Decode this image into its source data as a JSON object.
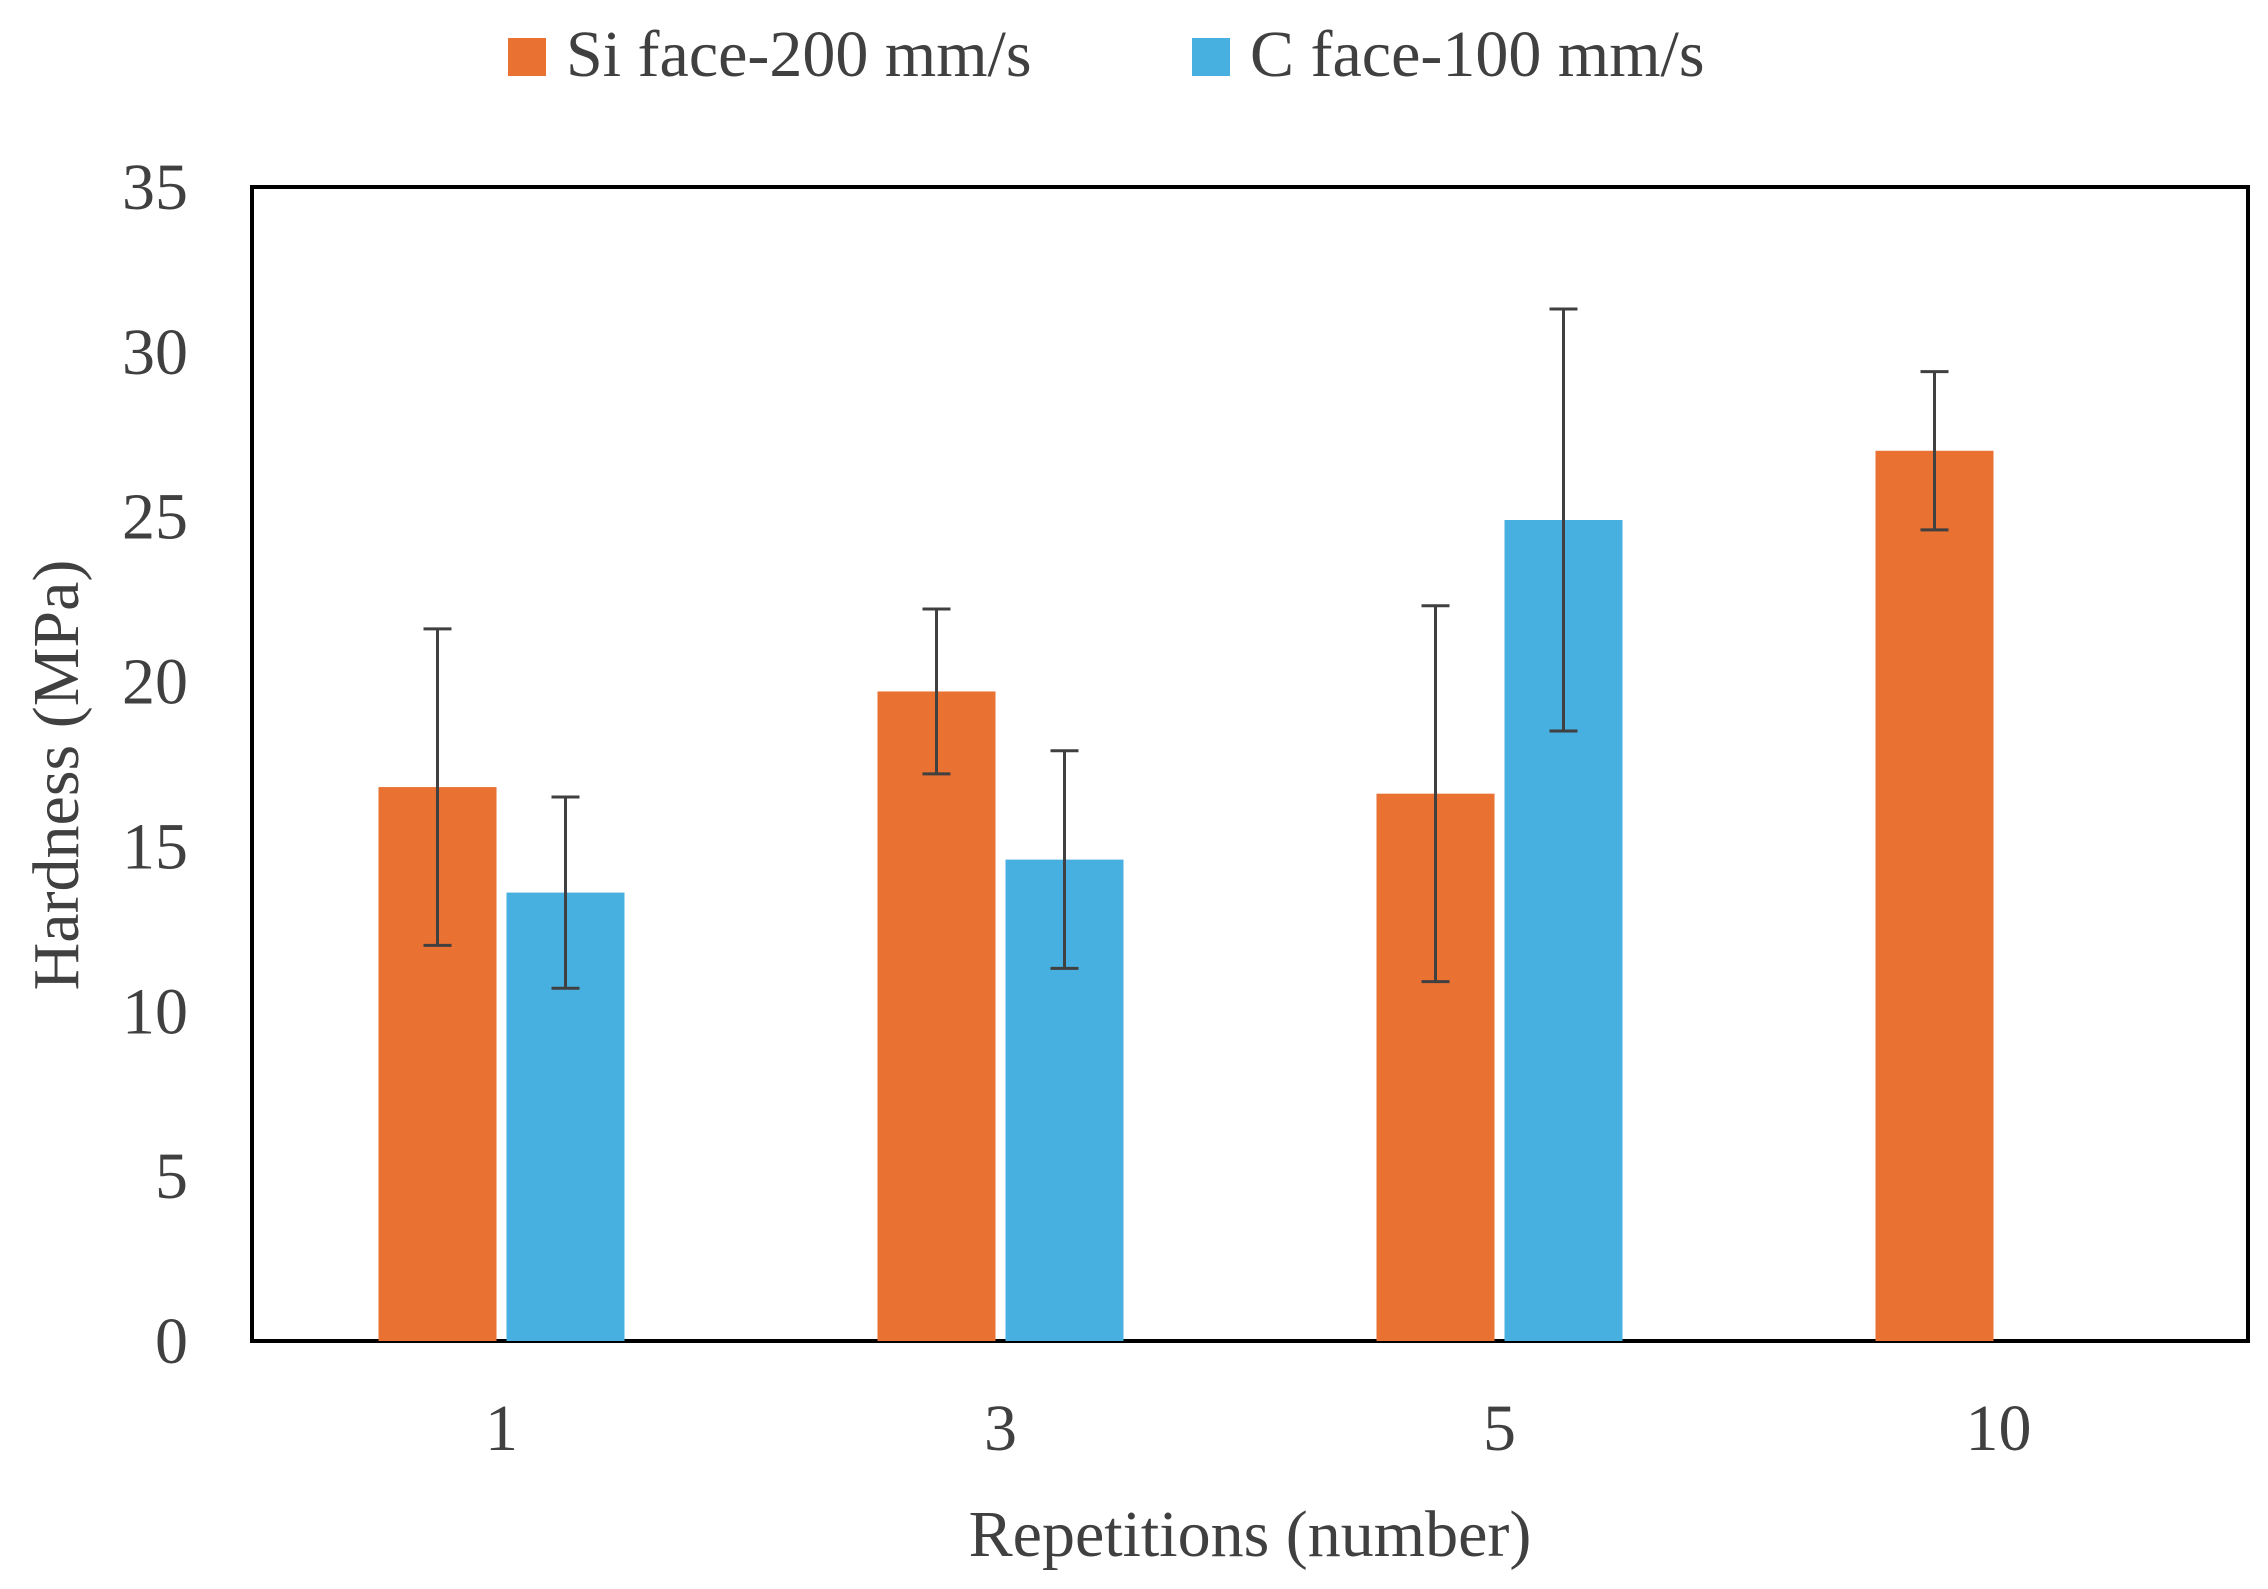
{
  "chart_data": {
    "type": "bar",
    "title": "",
    "xlabel": "Repetitions (number)",
    "ylabel": "Hardness (MPa)",
    "ylim": [
      0,
      35
    ],
    "yticks": [
      0,
      5,
      10,
      15,
      20,
      25,
      30,
      35
    ],
    "categories": [
      "1",
      "3",
      "5",
      "10"
    ],
    "grid": false,
    "legend_position": "top-center",
    "series": [
      {
        "name": "Si face-200 mm/s",
        "color": "#E97132",
        "values": [
          16.8,
          19.7,
          16.6,
          27.0
        ],
        "errors": [
          4.8,
          2.5,
          5.7,
          2.4
        ]
      },
      {
        "name": "C face-100 mm/s",
        "color": "#47B0E1",
        "values": [
          13.6,
          14.6,
          24.9,
          null
        ],
        "errors": [
          2.9,
          3.3,
          6.4,
          null
        ]
      }
    ]
  }
}
